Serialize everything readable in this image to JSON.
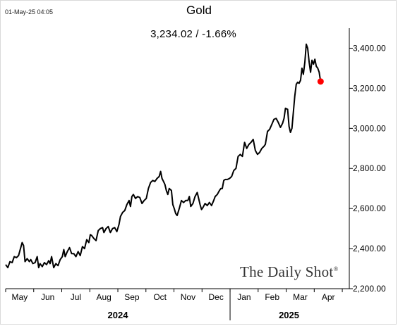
{
  "header": {
    "timestamp": "01-May-25 04:05",
    "title": "Gold",
    "last_value": "3,234.02  /  -1.66%",
    "watermark": "The Daily Shot",
    "watermark_mark": "®"
  },
  "colors": {
    "line": "#000000",
    "last_point": "#ff0000",
    "axis": "#000000"
  },
  "chart_data": {
    "type": "line",
    "title": "Gold",
    "xlabel": "",
    "ylabel": "",
    "ylim": [
      2200,
      3500
    ],
    "y_ticks": [
      2200,
      2400,
      2600,
      2800,
      3000,
      3200,
      3400
    ],
    "y_tick_labels": [
      "2,200.00",
      "2,400.00",
      "2,600.00",
      "2,800.00",
      "3,000.00",
      "3,200.00",
      "3,400.00"
    ],
    "y_axis_side": "right",
    "grid": false,
    "legend": "none",
    "x_month_labels": [
      "May",
      "Jun",
      "Jul",
      "Aug",
      "Sep",
      "Oct",
      "Nov",
      "Dec",
      "Jan",
      "Feb",
      "Mar",
      "Apr"
    ],
    "x_years": [
      "2024",
      "2025"
    ],
    "last_value": 3234.02,
    "last_change_pct": -1.66,
    "series": [
      {
        "values": [
          [
            0,
            2320
          ],
          [
            3,
            2305
          ],
          [
            6,
            2335
          ],
          [
            9,
            2330
          ],
          [
            12,
            2360
          ],
          [
            15,
            2355
          ],
          [
            18,
            2365
          ],
          [
            21,
            2405
          ],
          [
            23,
            2430
          ],
          [
            25,
            2415
          ],
          [
            27,
            2335
          ],
          [
            30,
            2350
          ],
          [
            33,
            2335
          ],
          [
            35,
            2345
          ],
          [
            38,
            2325
          ],
          [
            41,
            2330
          ],
          [
            44,
            2360
          ],
          [
            46,
            2305
          ],
          [
            48,
            2325
          ],
          [
            51,
            2310
          ],
          [
            54,
            2330
          ],
          [
            57,
            2320
          ],
          [
            60,
            2340
          ],
          [
            62,
            2325
          ],
          [
            64,
            2360
          ],
          [
            67,
            2305
          ],
          [
            70,
            2325
          ],
          [
            73,
            2315
          ],
          [
            76,
            2345
          ],
          [
            79,
            2360
          ],
          [
            81,
            2395
          ],
          [
            83,
            2360
          ],
          [
            86,
            2385
          ],
          [
            89,
            2405
          ],
          [
            92,
            2375
          ],
          [
            95,
            2375
          ],
          [
            98,
            2360
          ],
          [
            101,
            2385
          ],
          [
            104,
            2365
          ],
          [
            107,
            2410
          ],
          [
            110,
            2400
          ],
          [
            113,
            2445
          ],
          [
            116,
            2430
          ],
          [
            118,
            2470
          ],
          [
            120,
            2465
          ],
          [
            123,
            2450
          ],
          [
            126,
            2440
          ],
          [
            129,
            2490
          ],
          [
            132,
            2500
          ],
          [
            135,
            2505
          ],
          [
            137,
            2480
          ],
          [
            140,
            2500
          ],
          [
            143,
            2510
          ],
          [
            146,
            2480
          ],
          [
            149,
            2500
          ],
          [
            152,
            2505
          ],
          [
            155,
            2485
          ],
          [
            158,
            2520
          ],
          [
            160,
            2560
          ],
          [
            163,
            2580
          ],
          [
            166,
            2590
          ],
          [
            169,
            2620
          ],
          [
            172,
            2640
          ],
          [
            174,
            2610
          ],
          [
            176,
            2660
          ],
          [
            178,
            2670
          ],
          [
            181,
            2650
          ],
          [
            184,
            2660
          ],
          [
            187,
            2655
          ],
          [
            190,
            2625
          ],
          [
            193,
            2640
          ],
          [
            196,
            2650
          ],
          [
            199,
            2700
          ],
          [
            202,
            2730
          ],
          [
            205,
            2740
          ],
          [
            208,
            2735
          ],
          [
            211,
            2750
          ],
          [
            214,
            2760
          ],
          [
            216,
            2785
          ],
          [
            218,
            2750
          ],
          [
            220,
            2735
          ],
          [
            222,
            2720
          ],
          [
            224,
            2690
          ],
          [
            226,
            2670
          ],
          [
            228,
            2700
          ],
          [
            231,
            2690
          ],
          [
            233,
            2620
          ],
          [
            235,
            2600
          ],
          [
            237,
            2575
          ],
          [
            239,
            2565
          ],
          [
            242,
            2600
          ],
          [
            245,
            2640
          ],
          [
            248,
            2630
          ],
          [
            251,
            2640
          ],
          [
            254,
            2640
          ],
          [
            256,
            2660
          ],
          [
            258,
            2610
          ],
          [
            261,
            2625
          ],
          [
            264,
            2660
          ],
          [
            267,
            2680
          ],
          [
            269,
            2650
          ],
          [
            271,
            2620
          ],
          [
            273,
            2595
          ],
          [
            275,
            2605
          ],
          [
            278,
            2625
          ],
          [
            281,
            2615
          ],
          [
            284,
            2630
          ],
          [
            287,
            2615
          ],
          [
            290,
            2640
          ],
          [
            292,
            2660
          ],
          [
            295,
            2670
          ],
          [
            298,
            2690
          ],
          [
            300,
            2700
          ],
          [
            302,
            2700
          ],
          [
            304,
            2740
          ],
          [
            306,
            2745
          ],
          [
            309,
            2745
          ],
          [
            312,
            2750
          ],
          [
            315,
            2760
          ],
          [
            318,
            2790
          ],
          [
            321,
            2800
          ],
          [
            324,
            2860
          ],
          [
            327,
            2870
          ],
          [
            330,
            2860
          ],
          [
            333,
            2930
          ],
          [
            336,
            2900
          ],
          [
            339,
            2920
          ],
          [
            342,
            2930
          ],
          [
            345,
            2945
          ],
          [
            348,
            2890
          ],
          [
            351,
            2870
          ],
          [
            354,
            2880
          ],
          [
            357,
            2900
          ],
          [
            360,
            2910
          ],
          [
            362,
            2920
          ],
          [
            365,
            2985
          ],
          [
            368,
            2995
          ],
          [
            371,
            3020
          ],
          [
            374,
            3045
          ],
          [
            377,
            3050
          ],
          [
            380,
            3030
          ],
          [
            383,
            3005
          ],
          [
            386,
            3025
          ],
          [
            388,
            3050
          ],
          [
            390,
            3100
          ],
          [
            393,
            3095
          ],
          [
            395,
            3010
          ],
          [
            397,
            2980
          ],
          [
            399,
            3000
          ],
          [
            401,
            3080
          ],
          [
            403,
            3160
          ],
          [
            405,
            3220
          ],
          [
            407,
            3230
          ],
          [
            409,
            3225
          ],
          [
            411,
            3240
          ],
          [
            413,
            3300
          ],
          [
            415,
            3270
          ],
          [
            417,
            3330
          ],
          [
            419,
            3420
          ],
          [
            421,
            3400
          ],
          [
            423,
            3330
          ],
          [
            425,
            3280
          ],
          [
            427,
            3340
          ],
          [
            429,
            3320
          ],
          [
            431,
            3345
          ],
          [
            433,
            3310
          ],
          [
            435,
            3300
          ],
          [
            437,
            3280
          ],
          [
            439,
            3234
          ]
        ]
      }
    ]
  }
}
